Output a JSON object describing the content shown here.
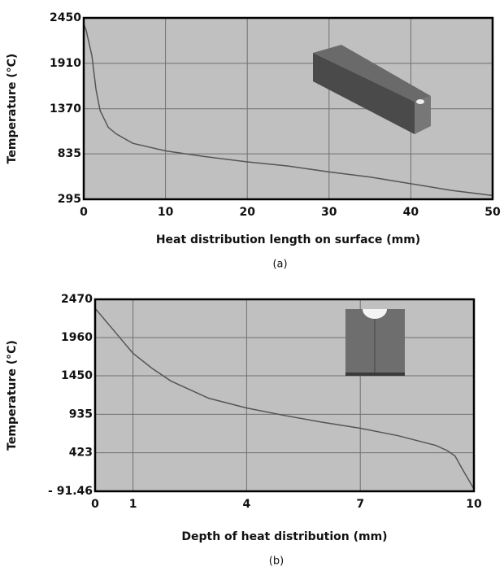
{
  "chart_data": [
    {
      "type": "line",
      "caption": "(a)",
      "x_label": "Heat distribution length on surface (mm)",
      "y_label": "Temperature (°C)",
      "x": [
        0,
        0.3,
        1,
        1.5,
        2,
        3,
        4,
        6,
        10,
        15,
        20,
        25,
        30,
        35,
        40,
        45,
        50
      ],
      "series": [
        {
          "color": "#555555",
          "values": [
            2380,
            2300,
            2000,
            1600,
            1350,
            1150,
            1070,
            960,
            870,
            800,
            740,
            690,
            620,
            560,
            480,
            400,
            340
          ]
        }
      ],
      "xlim": [
        0,
        50
      ],
      "ylim": [
        295,
        2450
      ],
      "xticks": [
        0,
        10,
        20,
        30,
        40,
        50
      ],
      "yticks": [
        295,
        835,
        1370,
        1910,
        2450
      ],
      "grid": true
    },
    {
      "type": "line",
      "caption": "(b)",
      "x_label": "Depth of heat distribution (mm)",
      "y_label": "Temperature (°C)",
      "x": [
        0,
        0.5,
        1,
        1.5,
        2,
        3,
        4,
        5,
        6,
        7,
        8,
        9,
        9.3,
        9.5,
        9.7,
        10
      ],
      "series": [
        {
          "color": "#555555",
          "values": [
            2350,
            2050,
            1750,
            1550,
            1380,
            1150,
            1020,
            920,
            830,
            750,
            650,
            520,
            450,
            380,
            200,
            -60
          ]
        }
      ],
      "xlim": [
        0,
        10
      ],
      "ylim": [
        -91.46,
        2470
      ],
      "xticks": [
        0,
        1,
        4,
        7,
        10
      ],
      "yticks": [
        {
          "value": -91.46,
          "label": "- 91.46"
        },
        423,
        935,
        1450,
        1960,
        2470
      ],
      "grid": true
    }
  ]
}
